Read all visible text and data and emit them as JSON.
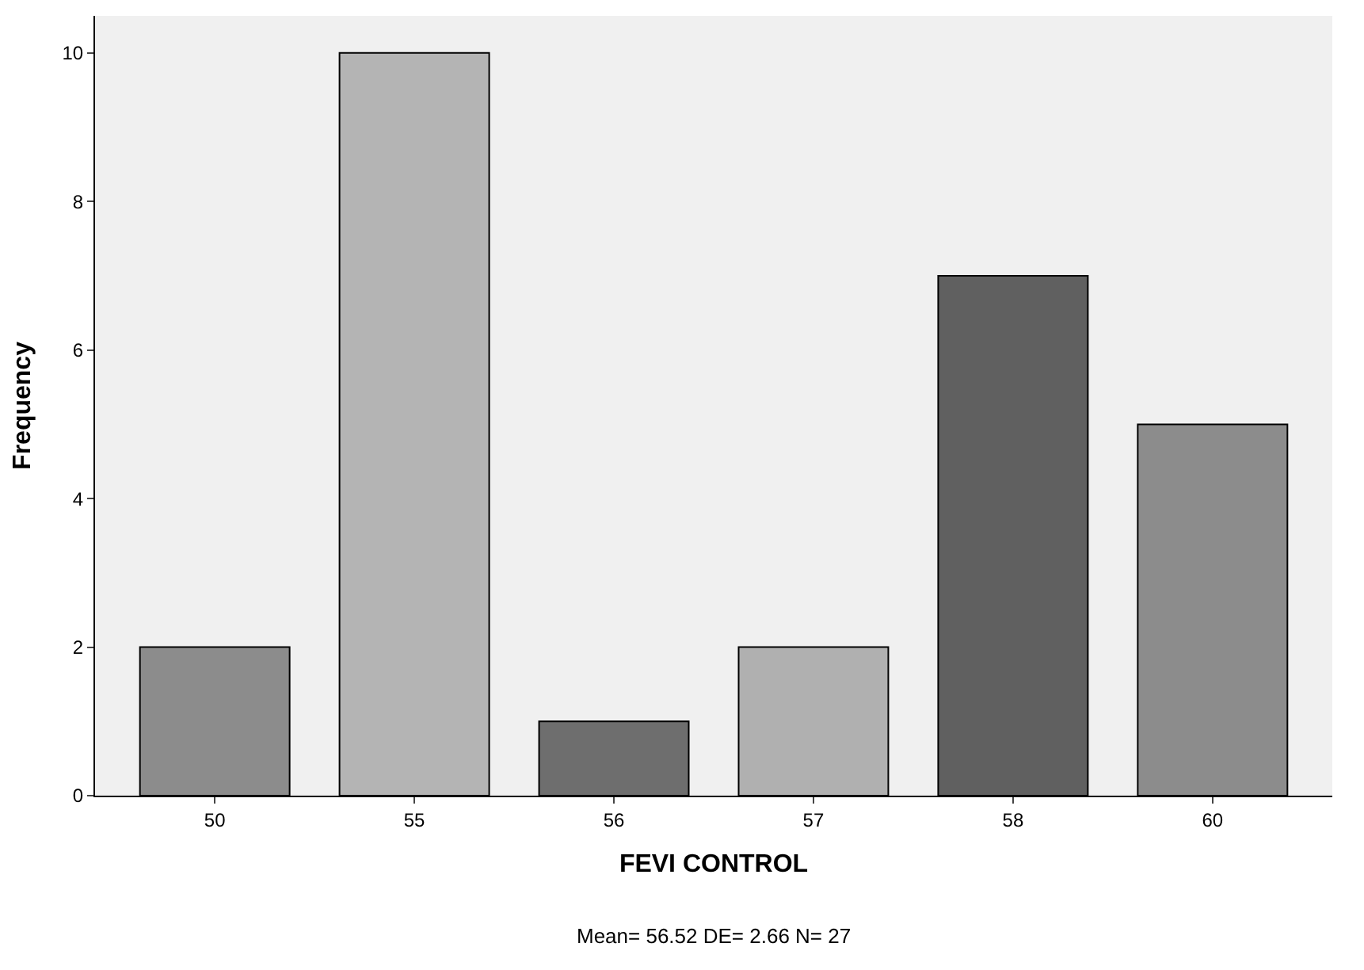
{
  "chart_data": {
    "type": "bar",
    "xlabel": "FEVI CONTROL",
    "ylabel": "Frequency",
    "categories": [
      "50",
      "55",
      "56",
      "57",
      "58",
      "60"
    ],
    "values": [
      2,
      10,
      1,
      2,
      7,
      5
    ],
    "colors": [
      "#8c8c8c",
      "#b4b4b4",
      "#6e6e6e",
      "#b0b0b0",
      "#606060",
      "#8c8c8c"
    ],
    "ylim": [
      0,
      10.5
    ],
    "yticks": [
      0,
      2,
      4,
      6,
      8,
      10
    ],
    "grid": false,
    "annotations": [
      "Mean= 56.52 DE= 2.66 N= 27"
    ]
  }
}
